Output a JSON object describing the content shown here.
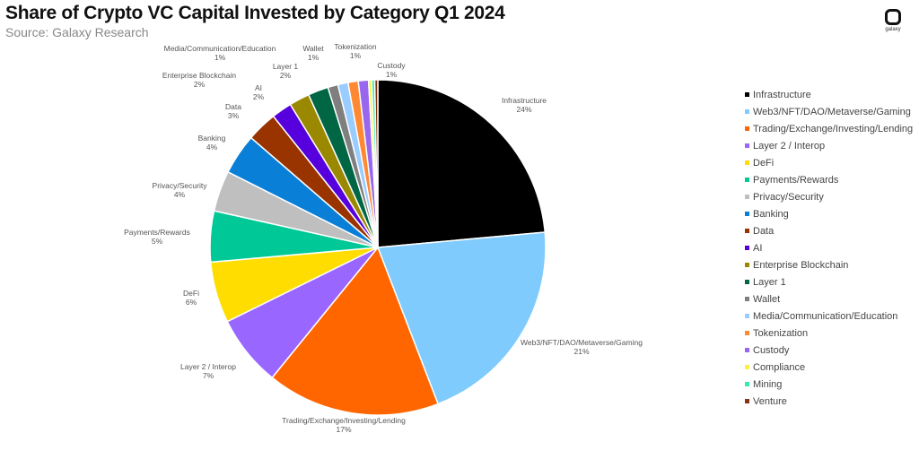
{
  "header": {
    "title": "Share of Crypto VC Capital Invested by Category Q1 2024",
    "subtitle": "Source: Galaxy Research",
    "logo_text": "galaxy"
  },
  "chart_data": {
    "type": "pie",
    "title": "Share of Crypto VC Capital Invested by Category Q1 2024",
    "start": "12 o'clock",
    "direction": "clockwise",
    "legend": "right",
    "slices": [
      {
        "name": "Infrastructure",
        "value": 24,
        "label": "24%",
        "color": "#000000"
      },
      {
        "name": "Web3/NFT/DAO/Metaverse/Gaming",
        "value": 21,
        "label": "21%",
        "color": "#7fcbfd"
      },
      {
        "name": "Trading/Exchange/Investing/Lending",
        "value": 17,
        "label": "17%",
        "color": "#ff6600"
      },
      {
        "name": "Layer 2 / Interop",
        "value": 7,
        "label": "7%",
        "color": "#9966ff"
      },
      {
        "name": "DeFi",
        "value": 6,
        "label": "6%",
        "color": "#ffdd00"
      },
      {
        "name": "Payments/Rewards",
        "value": 5,
        "label": "5%",
        "color": "#00c896"
      },
      {
        "name": "Privacy/Security",
        "value": 4,
        "label": "4%",
        "color": "#bfbfbf"
      },
      {
        "name": "Banking",
        "value": 4,
        "label": "4%",
        "color": "#0a7fd8"
      },
      {
        "name": "Data",
        "value": 3,
        "label": "3%",
        "color": "#993300"
      },
      {
        "name": "AI",
        "value": 2,
        "label": "2%",
        "color": "#5500dd"
      },
      {
        "name": "Enterprise Blockchain",
        "value": 2,
        "label": "2%",
        "color": "#998800"
      },
      {
        "name": "Layer 1",
        "value": 2,
        "label": "2%",
        "color": "#006644"
      },
      {
        "name": "Wallet",
        "value": 1,
        "label": "1%",
        "color": "#7f7f7f"
      },
      {
        "name": "Media/Communication/Education",
        "value": 1,
        "label": "1%",
        "color": "#99ccff"
      },
      {
        "name": "Tokenization",
        "value": 1,
        "label": "1%",
        "color": "#ff8833"
      },
      {
        "name": "Custody",
        "value": 1,
        "label": "1%",
        "color": "#9966ee"
      },
      {
        "name": "Compliance",
        "value": 0.3,
        "color": "#ffee44"
      },
      {
        "name": "Mining",
        "value": 0.3,
        "color": "#33eeaa"
      },
      {
        "name": "Venture",
        "value": 0.3,
        "color": "#883311"
      }
    ]
  }
}
